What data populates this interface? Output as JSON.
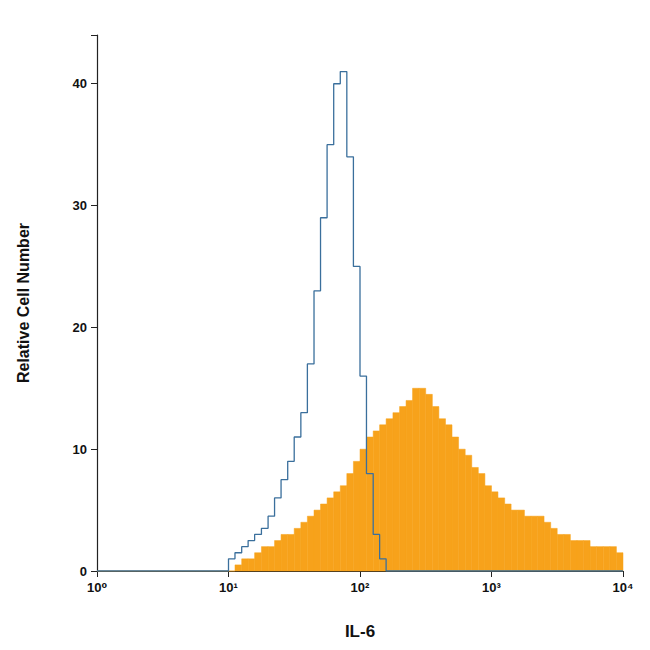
{
  "chart_data": {
    "type": "histogram",
    "x_label": "IL-6",
    "y_label": "Relative Cell Number",
    "log": "x",
    "grid": false,
    "xlim": [
      1,
      10000
    ],
    "xticks": [
      {
        "value": 1,
        "label": "10⁰"
      },
      {
        "value": 10,
        "label": "10¹"
      },
      {
        "value": 100,
        "label": "10²"
      },
      {
        "value": 1000,
        "label": "10³"
      },
      {
        "value": 10000,
        "label": "10⁴"
      }
    ],
    "ylim": [
      0,
      44
    ],
    "yticks": [
      0,
      10,
      20,
      30,
      40
    ],
    "bins": [
      1,
      1.12,
      1.26,
      1.41,
      1.58,
      1.78,
      2,
      2.24,
      2.51,
      2.82,
      3.16,
      3.55,
      3.98,
      4.47,
      5.01,
      5.62,
      6.31,
      7.08,
      7.94,
      8.91,
      10,
      11.2,
      12.6,
      14.1,
      15.8,
      17.8,
      20,
      22.4,
      25.1,
      28.2,
      31.6,
      35.5,
      39.8,
      44.7,
      50.1,
      56.2,
      63.1,
      70.8,
      79.4,
      89.1,
      100,
      112,
      126,
      141,
      158,
      178,
      200,
      224,
      251,
      282,
      316,
      355,
      398,
      447,
      501,
      562,
      631,
      708,
      794,
      891,
      1000,
      1120,
      1260,
      1410,
      1580,
      1780,
      2000,
      2240,
      2510,
      2820,
      3160,
      3550,
      3980,
      4470,
      5010,
      5620,
      6310,
      7080,
      7940,
      8910,
      10000
    ],
    "series": [
      {
        "type": "bar",
        "color": "#f7a21b",
        "values": [
          0,
          0,
          0,
          0,
          0,
          0,
          0,
          0,
          0,
          0,
          0,
          0,
          0,
          0,
          0,
          0,
          0,
          0,
          0,
          0,
          0,
          0.5,
          1,
          1,
          1.5,
          2,
          2,
          2.5,
          3,
          3,
          3.5,
          4,
          4.5,
          5,
          5.5,
          6,
          6.5,
          7,
          8,
          9,
          10,
          11,
          11.5,
          12,
          12.5,
          13,
          13.5,
          14,
          15,
          15,
          14.5,
          13.5,
          12.5,
          12,
          11,
          10,
          9.5,
          8.5,
          8,
          7,
          6.5,
          6,
          5.5,
          5,
          5,
          4.5,
          4.5,
          4.5,
          4,
          3.5,
          3,
          3,
          2.5,
          2.5,
          2.5,
          2,
          2,
          2,
          2,
          1.5
        ]
      },
      {
        "type": "line",
        "color": "#3a6f9c",
        "values": [
          0,
          0,
          0,
          0,
          0,
          0,
          0,
          0,
          0,
          0,
          0,
          0,
          0,
          0,
          0,
          0,
          0,
          0,
          0,
          0,
          1,
          1.5,
          2,
          2.5,
          3,
          3.5,
          4.5,
          6,
          7.5,
          9,
          11,
          13,
          17,
          23,
          29,
          35,
          40,
          41,
          34,
          25,
          16,
          8,
          3,
          1,
          0,
          0,
          0,
          0,
          0,
          0,
          0,
          0,
          0,
          0,
          0,
          0,
          0,
          0,
          0,
          0,
          0,
          0,
          0,
          0,
          0,
          0,
          0,
          0,
          0,
          0,
          0,
          0,
          0,
          0,
          0,
          0,
          0,
          0,
          0,
          0
        ]
      }
    ]
  }
}
